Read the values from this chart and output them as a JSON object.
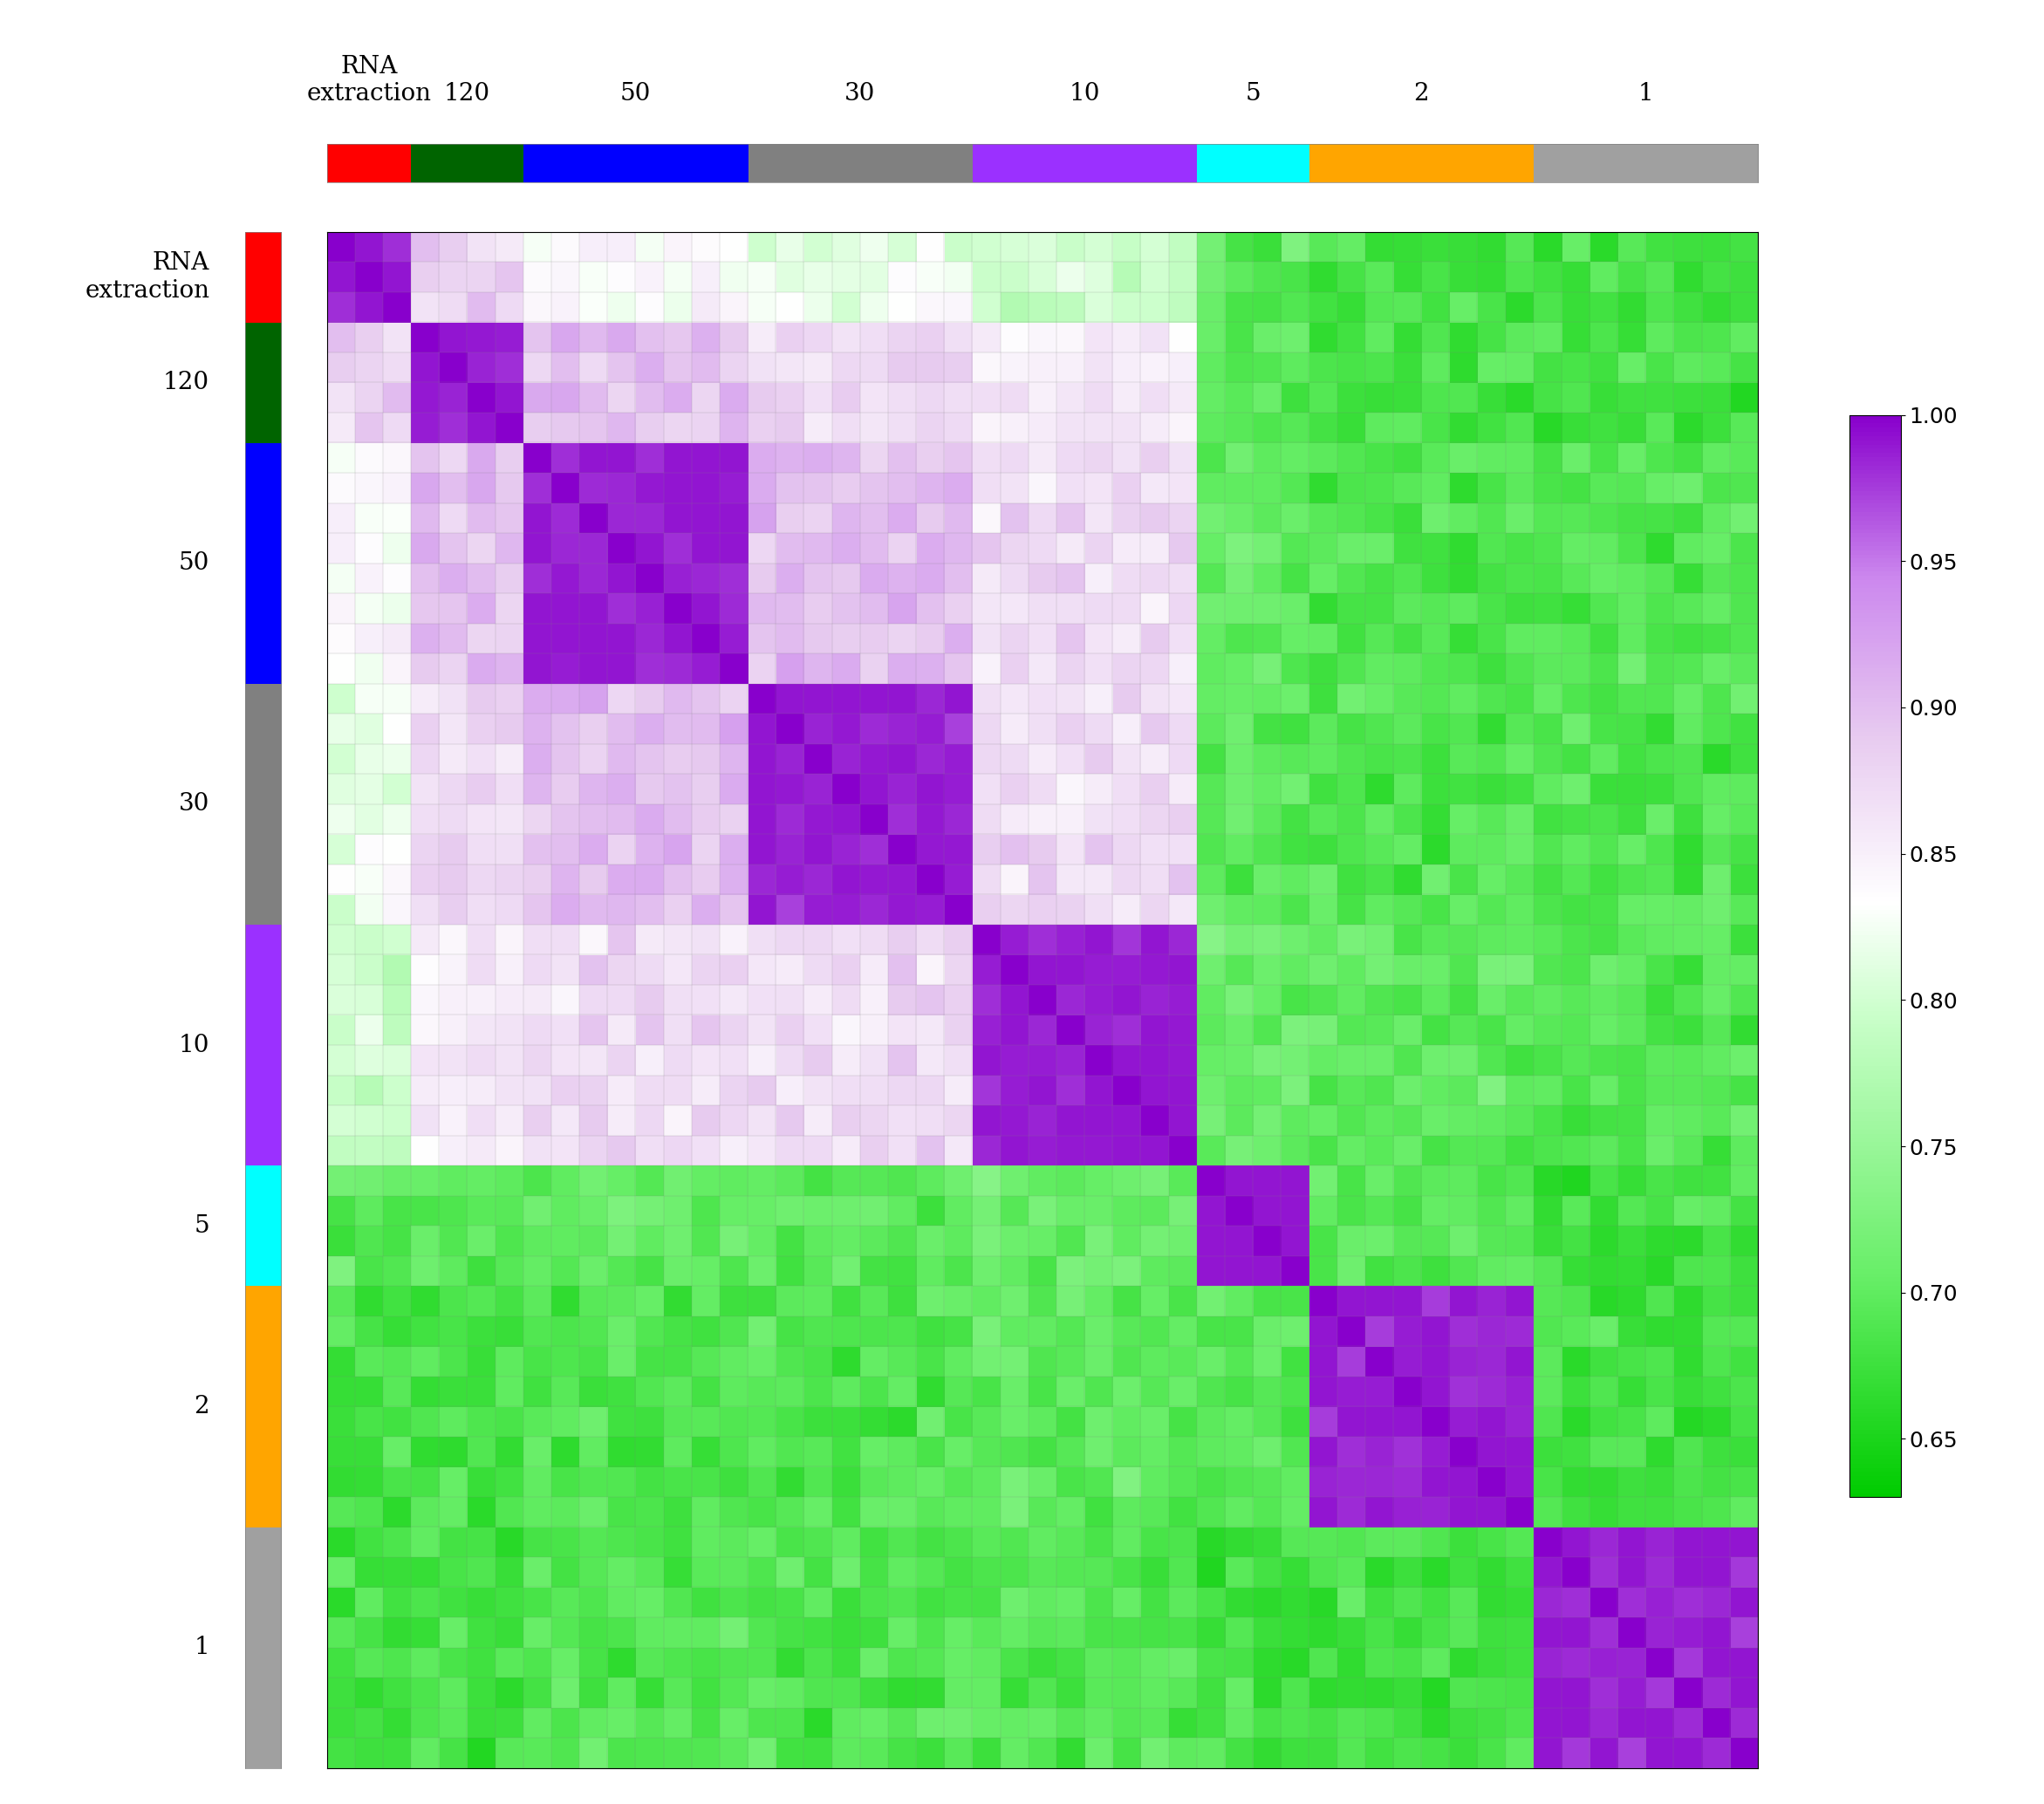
{
  "group_labels": [
    "RNA\nextraction",
    "120",
    "50",
    "30",
    "10",
    "5",
    "2",
    "1"
  ],
  "group_sizes": [
    3,
    4,
    8,
    8,
    8,
    4,
    8,
    8
  ],
  "group_colors": [
    "#FF0000",
    "#006400",
    "#0000FF",
    "#808080",
    "#9B30FF",
    "#00FFFF",
    "#FFA500",
    "#A0A0A0"
  ],
  "colorbar_ticks": [
    0.65,
    0.7,
    0.75,
    0.8,
    0.85,
    0.9,
    0.95,
    1.0
  ],
  "vmin": 0.63,
  "vmax": 1.0,
  "title": "",
  "xlabel_top": "RNA\nextraction",
  "axis_label_fontsize": 22,
  "tick_label_fontsize": 20
}
